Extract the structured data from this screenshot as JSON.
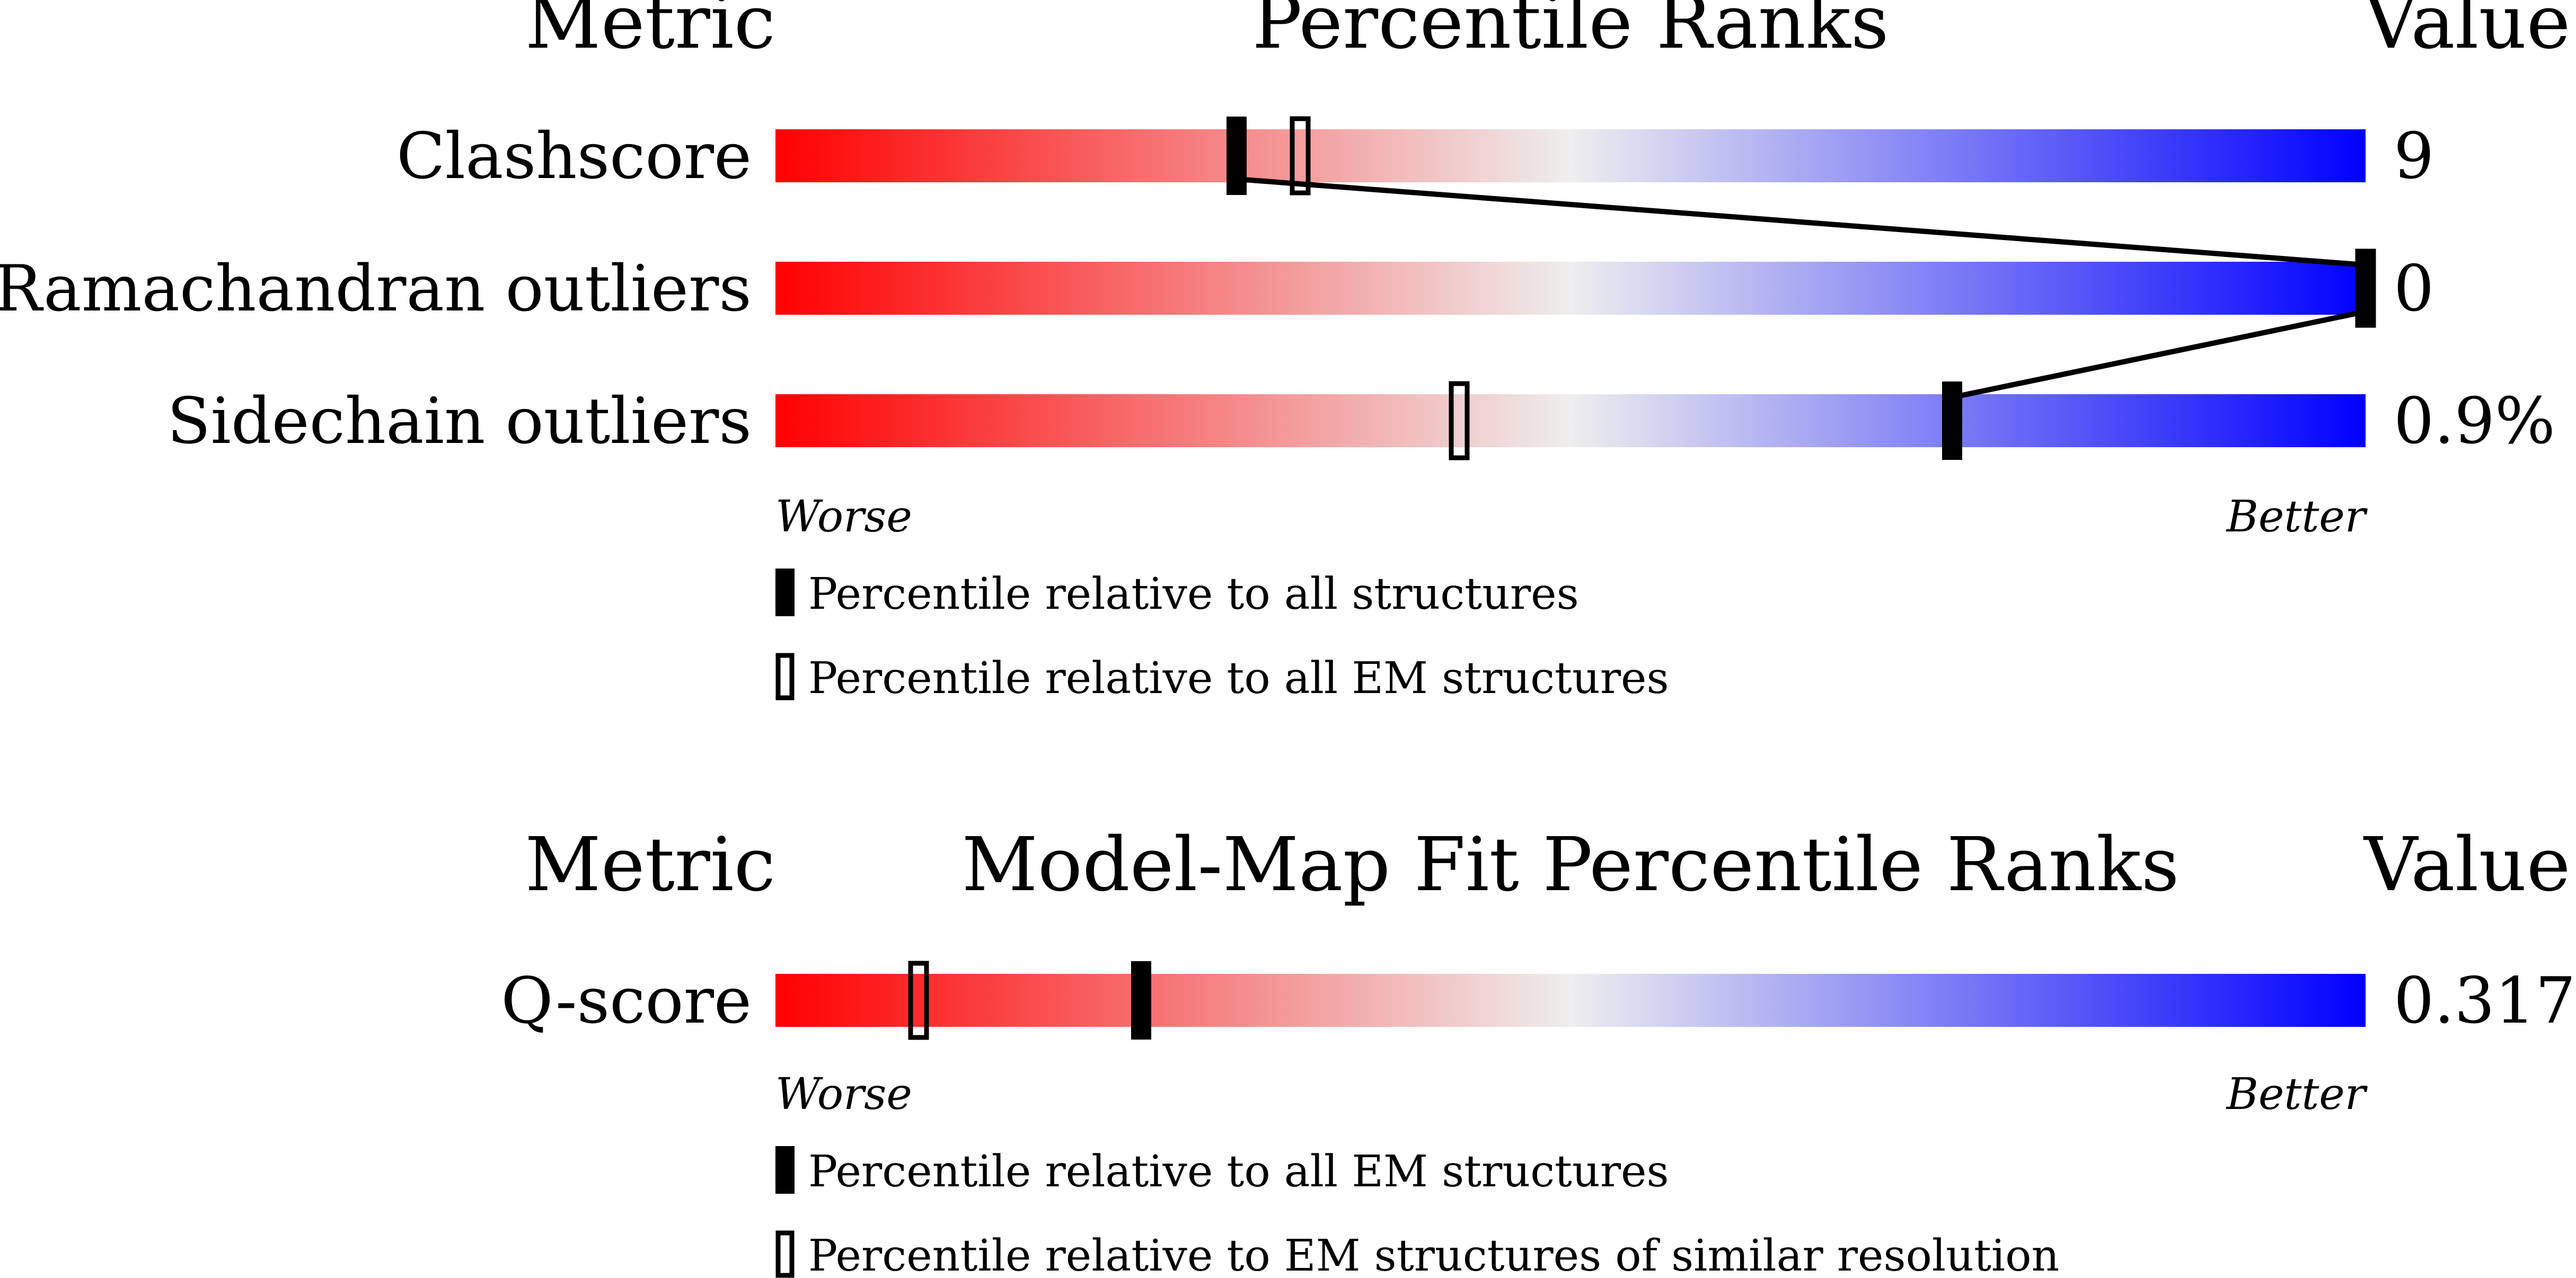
{
  "chart_data": [
    {
      "type": "percentile-slider",
      "title": "Percentile Ranks",
      "header_metric": "Metric",
      "header_value": "Value",
      "axis_min_label": "Worse",
      "axis_max_label": "Better",
      "xlim": [
        0,
        100
      ],
      "gradient": [
        "#ff0000",
        "#eeeeee",
        "#0000ff"
      ],
      "rows": [
        {
          "metric": "Clashscore",
          "value": "9",
          "percentile_all": 29,
          "percentile_em": 33
        },
        {
          "metric": "Ramachandran outliers",
          "value": "0",
          "percentile_all": 100,
          "percentile_em": 100
        },
        {
          "metric": "Sidechain outliers",
          "value": "0.9%",
          "percentile_all": 74,
          "percentile_em": 43
        }
      ],
      "legend": [
        {
          "marker": "filled",
          "label": "Percentile relative to all structures"
        },
        {
          "marker": "open",
          "label": "Percentile relative to all EM structures"
        }
      ],
      "connector": "percentile_all"
    },
    {
      "type": "percentile-slider",
      "title": "Model-Map Fit Percentile Ranks",
      "header_metric": "Metric",
      "header_value": "Value",
      "axis_min_label": "Worse",
      "axis_max_label": "Better",
      "xlim": [
        0,
        100
      ],
      "gradient": [
        "#ff0000",
        "#eeeeee",
        "#0000ff"
      ],
      "rows": [
        {
          "metric": "Q-score",
          "value": "0.317",
          "percentile_all": 23,
          "percentile_em": 9
        }
      ],
      "legend": [
        {
          "marker": "filled",
          "label": "Percentile relative to all EM structures"
        },
        {
          "marker": "open",
          "label": "Percentile relative to EM structures of similar resolution"
        }
      ]
    }
  ]
}
